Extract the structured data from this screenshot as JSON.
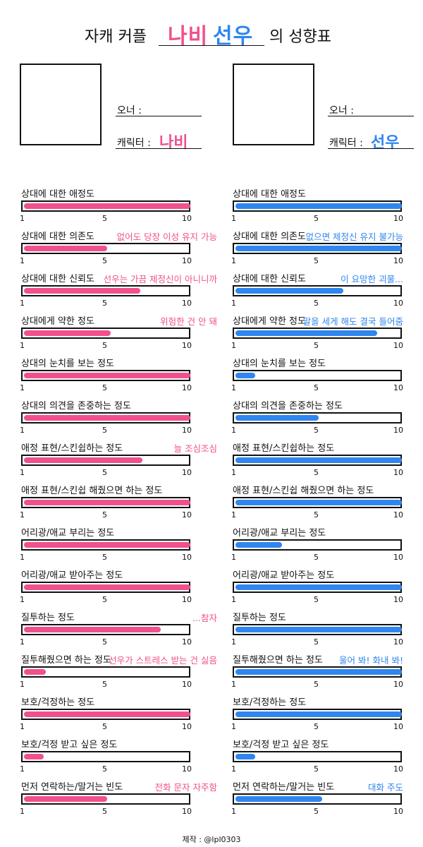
{
  "title": {
    "prefix": "자캐 커플",
    "name_left": "나비",
    "name_right": "선우",
    "suffix": "의 성향표"
  },
  "left": {
    "owner_label": "오너 :",
    "char_label": "캐릭터 :",
    "char_name": "나비",
    "color": "#f0508d",
    "rows": [
      {
        "label": "상대에 대한 애정도",
        "note": "",
        "value": 10
      },
      {
        "label": "상대에 대한 의존도",
        "note": "없어도 당장 이성 유지 가능",
        "value": 5
      },
      {
        "label": "상대에 대한 신뢰도",
        "note": "선우는 가끔 제정신이 아니니까",
        "value": 7
      },
      {
        "label": "상대에게 약한 정도",
        "note": "위험한 건 안 돼",
        "value": 5.2
      },
      {
        "label": "상대의 눈치를 보는 정도",
        "note": "",
        "value": 10
      },
      {
        "label": "상대의 의견을 존중하는 정도",
        "note": "",
        "value": 10
      },
      {
        "label": "애정 표현/스킨쉽하는 정도",
        "note": "늘 조심조심",
        "value": 7.1
      },
      {
        "label": "애정 표현/스킨쉽 해줬으면 하는 정도",
        "note": "",
        "value": 10
      },
      {
        "label": "어리광/애교 부리는 정도",
        "note": "",
        "value": 10
      },
      {
        "label": "어리광/애교 받아주는 정도",
        "note": "",
        "value": 10
      },
      {
        "label": "질투하는 정도",
        "note": "...참자",
        "value": 8.2
      },
      {
        "label": "질투해줬으면 하는 정도",
        "note": "선우가 스트레스 받는 건 싫음",
        "value": 1.3
      },
      {
        "label": "보호/걱정하는 정도",
        "note": "",
        "value": 10
      },
      {
        "label": "보호/걱정 받고 싶은 정도",
        "note": "",
        "value": 1.2
      },
      {
        "label": "먼저 연락하는/말거는 빈도",
        "note": "전화 문자 자주함",
        "value": 5
      }
    ]
  },
  "right": {
    "owner_label": "오너 :",
    "char_label": "캐릭터 :",
    "char_name": "선우",
    "color": "#2f86ee",
    "rows": [
      {
        "label": "상대에 대한 애정도",
        "note": "",
        "value": 10
      },
      {
        "label": "상대에 대한 의존도",
        "note": "없으면 제정신 유지 불가능",
        "value": 10
      },
      {
        "label": "상대에 대한 신뢰도",
        "note": "이 요망한 괴물...",
        "value": 6.5
      },
      {
        "label": "상대에게 약한 정도",
        "note": "말을 세게 해도 결국 들어줌",
        "value": 8.5
      },
      {
        "label": "상대의 눈치를 보는 정도",
        "note": "",
        "value": 1.2
      },
      {
        "label": "상대의 의견을 존중하는 정도",
        "note": "",
        "value": 5
      },
      {
        "label": "애정 표현/스킨쉽하는 정도",
        "note": "",
        "value": 10
      },
      {
        "label": "애정 표현/스킨쉽 해줬으면 하는 정도",
        "note": "",
        "value": 10
      },
      {
        "label": "어리광/애교 부리는 정도",
        "note": "",
        "value": 2.8
      },
      {
        "label": "어리광/애교 받아주는 정도",
        "note": "",
        "value": 10
      },
      {
        "label": "질투하는 정도",
        "note": "",
        "value": 10
      },
      {
        "label": "질투해줬으면 하는 정도",
        "note": "울어 봐! 화내 봐!",
        "value": 10
      },
      {
        "label": "보호/걱정하는 정도",
        "note": "",
        "value": 10
      },
      {
        "label": "보호/걱정 받고 싶은 정도",
        "note": "",
        "value": 1.2
      },
      {
        "label": "먼저 연락하는/말거는 빈도",
        "note": "대화 주도",
        "value": 5.2
      }
    ]
  },
  "scale": {
    "min": "1",
    "mid": "5",
    "max": "10"
  },
  "credit": "제작 : @lpl0303"
}
